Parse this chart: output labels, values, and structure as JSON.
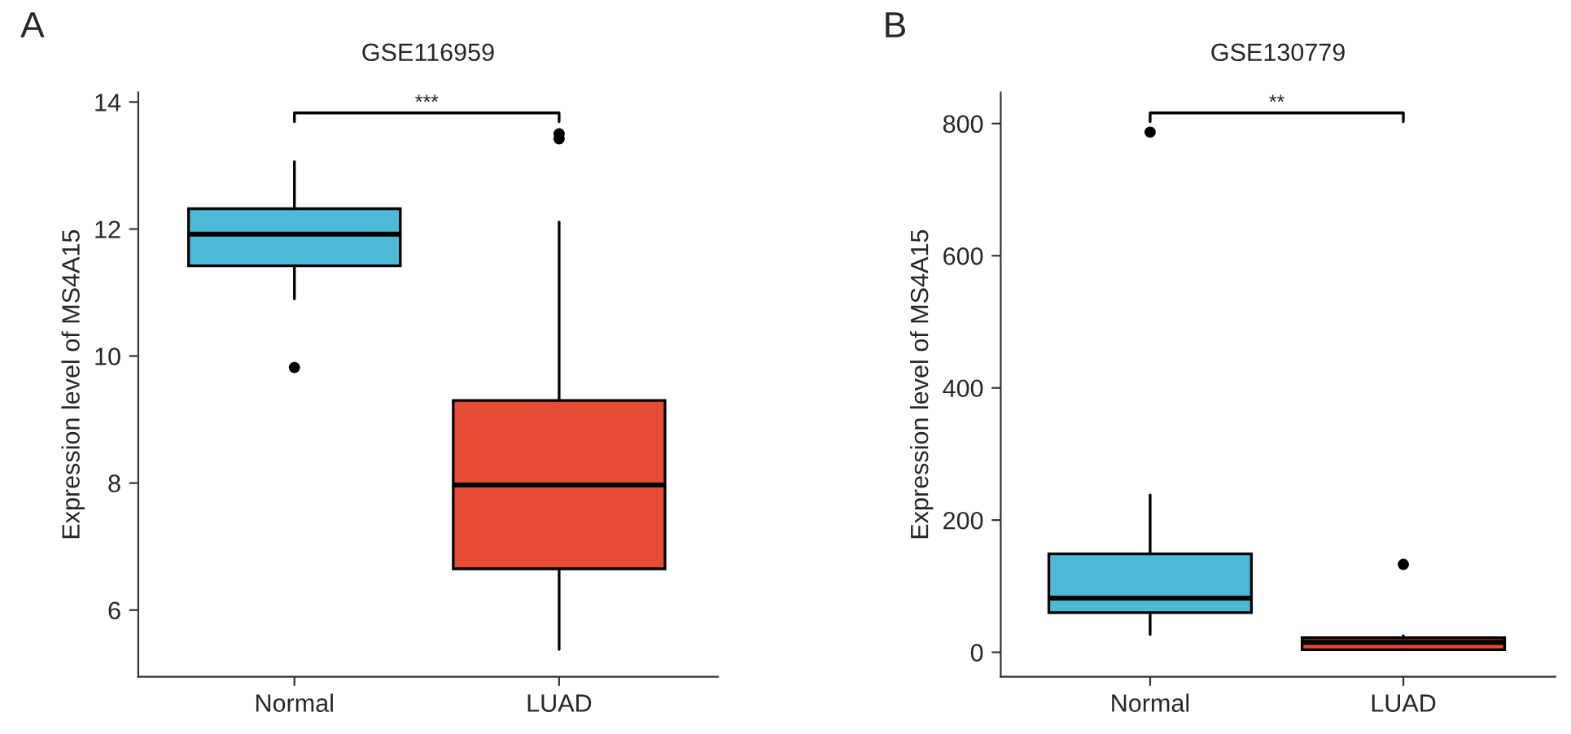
{
  "chart_data": [
    {
      "type": "box",
      "title": "GSE116959",
      "ylabel": "Expression level of MS4A15",
      "categories": [
        "Normal",
        "LUAD"
      ],
      "colors": [
        "#4cb9d6",
        "#e64b35"
      ],
      "boxes": [
        {
          "low": 10.9,
          "q1": 11.42,
          "median": 11.92,
          "q3": 12.32,
          "high": 13.06,
          "outliers": [
            9.82
          ]
        },
        {
          "low": 5.38,
          "q1": 6.65,
          "median": 7.97,
          "q3": 9.3,
          "high": 12.11,
          "outliers": [
            13.5,
            13.42
          ]
        }
      ],
      "ylim": [
        4.95,
        14.15
      ],
      "yticks": [
        6,
        8,
        10,
        12,
        14
      ],
      "grid": false,
      "annotations": [
        "A",
        "***"
      ]
    },
    {
      "type": "box",
      "title": "GSE130779",
      "ylabel": "Expression level of MS4A15",
      "categories": [
        "Normal",
        "LUAD"
      ],
      "colors": [
        "#4cb9d6",
        "#e64b35"
      ],
      "boxes": [
        {
          "low": 27,
          "q1": 60,
          "median": 82,
          "q3": 149,
          "high": 238,
          "outliers": [
            787
          ]
        },
        {
          "low": 4,
          "q1": 4,
          "median": 15,
          "q3": 22,
          "high": 25,
          "outliers": [
            133
          ]
        }
      ],
      "ylim": [
        -37,
        847
      ],
      "yticks": [
        0,
        200,
        400,
        600,
        800
      ],
      "grid": false,
      "annotations": [
        "B",
        "**"
      ]
    }
  ]
}
